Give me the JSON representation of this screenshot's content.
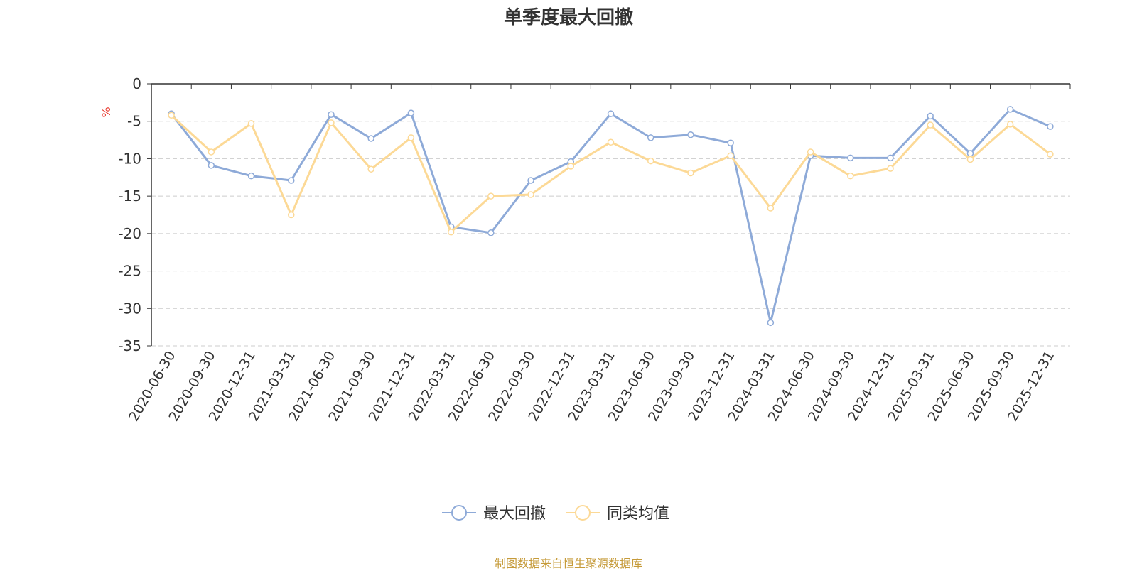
{
  "colors": {
    "series_1": "#8eaad8",
    "series_2": "#fcd996",
    "axis": "#333333",
    "grid": "#cccccc",
    "unit": "#e8392e",
    "source": "#c69b3a"
  },
  "source_note": "制图数据来自恒生聚源数据库",
  "chart_data": {
    "type": "line",
    "title": "单季度最大回撤",
    "ylabel": "%",
    "xlabel": "",
    "ylim": [
      -35,
      0
    ],
    "yticks": [
      0,
      -5,
      -10,
      -15,
      -20,
      -25,
      -30,
      -35
    ],
    "grid": true,
    "legend_position": "bottom",
    "categories": [
      "2020-06-30",
      "2020-09-30",
      "2020-12-31",
      "2021-03-31",
      "2021-06-30",
      "2021-09-30",
      "2021-12-31",
      "2022-03-31",
      "2022-06-30",
      "2022-09-30",
      "2022-12-31",
      "2023-03-31",
      "2023-06-30",
      "2023-09-30",
      "2023-12-31",
      "2024-03-31",
      "2024-06-30",
      "2024-09-30",
      "2024-12-31",
      "2025-03-31",
      "2025-06-30",
      "2025-09-30",
      "2025-12-31"
    ],
    "series": [
      {
        "name": "最大回撤",
        "values": [
          -4.0,
          -10.9,
          -12.3,
          -12.9,
          -4.1,
          -7.3,
          -3.9,
          -19.1,
          -19.9,
          -12.9,
          -10.4,
          -4.0,
          -7.2,
          -6.8,
          -7.9,
          -31.9,
          -9.6,
          -9.9,
          -9.9,
          -4.3,
          -9.3,
          -3.4,
          -5.7
        ]
      },
      {
        "name": "同类均值",
        "values": [
          -4.2,
          -9.1,
          -5.3,
          -17.5,
          -5.2,
          -11.4,
          -7.2,
          -19.8,
          -15.0,
          -14.8,
          -11.0,
          -7.8,
          -10.3,
          -11.9,
          -9.6,
          -16.6,
          -9.1,
          -12.3,
          -11.3,
          -5.5,
          -10.1,
          -5.4,
          -9.4
        ]
      }
    ]
  }
}
